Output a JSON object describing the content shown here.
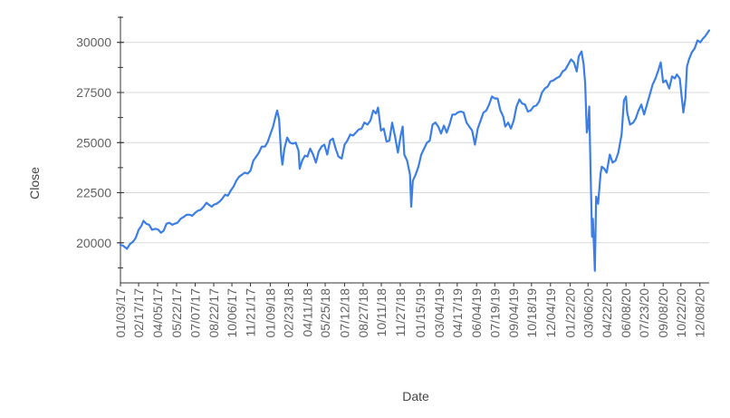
{
  "chart_data": {
    "type": "line",
    "xlabel": "Date",
    "ylabel": "Close",
    "ylim": [
      18000,
      31300
    ],
    "xlim": [
      "2017-01-03",
      "2020-12-31"
    ],
    "grid": true,
    "line_color": "#3b7ee6",
    "y_ticks": [
      {
        "value": 20000,
        "label": "20000"
      },
      {
        "value": 22500,
        "label": "22500"
      },
      {
        "value": 25000,
        "label": "25000"
      },
      {
        "value": 27500,
        "label": "27500"
      },
      {
        "value": 30000,
        "label": "30000"
      }
    ],
    "x_ticks": [
      {
        "date": "2017-01-03",
        "label": "01/03/17"
      },
      {
        "date": "2017-02-17",
        "label": "02/17/17"
      },
      {
        "date": "2017-04-05",
        "label": "04/05/17"
      },
      {
        "date": "2017-05-22",
        "label": "05/22/17"
      },
      {
        "date": "2017-07-07",
        "label": "07/07/17"
      },
      {
        "date": "2017-08-22",
        "label": "08/22/17"
      },
      {
        "date": "2017-10-06",
        "label": "10/06/17"
      },
      {
        "date": "2017-11-21",
        "label": "11/21/17"
      },
      {
        "date": "2018-01-09",
        "label": "01/09/18"
      },
      {
        "date": "2018-02-23",
        "label": "02/23/18"
      },
      {
        "date": "2018-04-11",
        "label": "04/11/18"
      },
      {
        "date": "2018-05-25",
        "label": "05/25/18"
      },
      {
        "date": "2018-07-12",
        "label": "07/12/18"
      },
      {
        "date": "2018-08-27",
        "label": "08/27/18"
      },
      {
        "date": "2018-10-11",
        "label": "10/11/18"
      },
      {
        "date": "2018-11-27",
        "label": "11/27/18"
      },
      {
        "date": "2019-01-15",
        "label": "01/15/19"
      },
      {
        "date": "2019-03-04",
        "label": "03/04/19"
      },
      {
        "date": "2019-04-17",
        "label": "04/17/19"
      },
      {
        "date": "2019-06-04",
        "label": "06/04/19"
      },
      {
        "date": "2019-07-19",
        "label": "07/19/19"
      },
      {
        "date": "2019-09-04",
        "label": "09/04/19"
      },
      {
        "date": "2019-10-18",
        "label": "10/18/19"
      },
      {
        "date": "2019-12-04",
        "label": "12/04/19"
      },
      {
        "date": "2020-01-22",
        "label": "01/22/20"
      },
      {
        "date": "2020-03-06",
        "label": "03/06/20"
      },
      {
        "date": "2020-04-22",
        "label": "04/22/20"
      },
      {
        "date": "2020-06-08",
        "label": "06/08/20"
      },
      {
        "date": "2020-07-23",
        "label": "07/23/20"
      },
      {
        "date": "2020-09-08",
        "label": "09/08/20"
      },
      {
        "date": "2020-10-22",
        "label": "10/22/20"
      },
      {
        "date": "2020-12-08",
        "label": "12/08/20"
      }
    ],
    "series": [
      {
        "x": [
          "2017-01-03",
          "2017-01-10",
          "2017-01-19",
          "2017-01-27",
          "2017-02-03",
          "2017-02-10",
          "2017-02-17",
          "2017-02-24",
          "2017-03-01",
          "2017-03-08",
          "2017-03-15",
          "2017-03-22",
          "2017-03-31",
          "2017-04-07",
          "2017-04-13",
          "2017-04-20",
          "2017-04-27",
          "2017-05-04",
          "2017-05-11",
          "2017-05-17",
          "2017-05-24",
          "2017-06-01",
          "2017-06-09",
          "2017-06-16",
          "2017-06-23",
          "2017-06-30",
          "2017-07-07",
          "2017-07-14",
          "2017-07-21",
          "2017-07-28",
          "2017-08-04",
          "2017-08-10",
          "2017-08-17",
          "2017-08-22",
          "2017-08-29",
          "2017-09-05",
          "2017-09-12",
          "2017-09-19",
          "2017-09-26",
          "2017-10-03",
          "2017-10-10",
          "2017-10-17",
          "2017-10-24",
          "2017-10-31",
          "2017-11-07",
          "2017-11-14",
          "2017-11-21",
          "2017-11-28",
          "2017-12-05",
          "2017-12-12",
          "2017-12-19",
          "2017-12-27",
          "2018-01-03",
          "2018-01-09",
          "2018-01-16",
          "2018-01-22",
          "2018-01-26",
          "2018-01-31",
          "2018-02-05",
          "2018-02-08",
          "2018-02-13",
          "2018-02-20",
          "2018-02-27",
          "2018-03-06",
          "2018-03-13",
          "2018-03-20",
          "2018-03-23",
          "2018-03-29",
          "2018-04-05",
          "2018-04-11",
          "2018-04-18",
          "2018-04-25",
          "2018-05-02",
          "2018-05-09",
          "2018-05-16",
          "2018-05-23",
          "2018-05-30",
          "2018-06-06",
          "2018-06-13",
          "2018-06-20",
          "2018-06-27",
          "2018-07-05",
          "2018-07-12",
          "2018-07-19",
          "2018-07-26",
          "2018-08-02",
          "2018-08-09",
          "2018-08-16",
          "2018-08-23",
          "2018-08-30",
          "2018-09-07",
          "2018-09-14",
          "2018-09-21",
          "2018-09-28",
          "2018-10-03",
          "2018-10-10",
          "2018-10-17",
          "2018-10-24",
          "2018-10-31",
          "2018-11-07",
          "2018-11-14",
          "2018-11-21",
          "2018-11-28",
          "2018-12-03",
          "2018-12-07",
          "2018-12-14",
          "2018-12-21",
          "2018-12-24",
          "2018-12-28",
          "2019-01-04",
          "2019-01-11",
          "2019-01-18",
          "2019-01-25",
          "2019-02-01",
          "2019-02-08",
          "2019-02-15",
          "2019-02-22",
          "2019-03-01",
          "2019-03-08",
          "2019-03-15",
          "2019-03-22",
          "2019-03-29",
          "2019-04-05",
          "2019-04-12",
          "2019-04-18",
          "2019-04-26",
          "2019-05-03",
          "2019-05-10",
          "2019-05-17",
          "2019-05-24",
          "2019-05-31",
          "2019-06-07",
          "2019-06-14",
          "2019-06-21",
          "2019-06-28",
          "2019-07-05",
          "2019-07-12",
          "2019-07-19",
          "2019-07-26",
          "2019-08-02",
          "2019-08-09",
          "2019-08-14",
          "2019-08-21",
          "2019-08-28",
          "2019-09-04",
          "2019-09-11",
          "2019-09-18",
          "2019-09-25",
          "2019-10-02",
          "2019-10-09",
          "2019-10-16",
          "2019-10-23",
          "2019-10-30",
          "2019-11-06",
          "2019-11-13",
          "2019-11-20",
          "2019-11-27",
          "2019-12-04",
          "2019-12-11",
          "2019-12-18",
          "2019-12-27",
          "2020-01-03",
          "2020-01-10",
          "2020-01-17",
          "2020-01-24",
          "2020-01-31",
          "2020-02-07",
          "2020-02-12",
          "2020-02-19",
          "2020-02-24",
          "2020-02-28",
          "2020-03-03",
          "2020-03-06",
          "2020-03-09",
          "2020-03-12",
          "2020-03-16",
          "2020-03-18",
          "2020-03-23",
          "2020-03-26",
          "2020-03-31",
          "2020-04-06",
          "2020-04-09",
          "2020-04-15",
          "2020-04-21",
          "2020-04-29",
          "2020-05-06",
          "2020-05-13",
          "2020-05-20",
          "2020-05-28",
          "2020-06-03",
          "2020-06-08",
          "2020-06-11",
          "2020-06-18",
          "2020-06-26",
          "2020-07-02",
          "2020-07-09",
          "2020-07-16",
          "2020-07-23",
          "2020-07-30",
          "2020-08-06",
          "2020-08-13",
          "2020-08-20",
          "2020-08-27",
          "2020-09-02",
          "2020-09-08",
          "2020-09-15",
          "2020-09-23",
          "2020-09-30",
          "2020-10-07",
          "2020-10-12",
          "2020-10-19",
          "2020-10-28",
          "2020-11-02",
          "2020-11-06",
          "2020-11-11",
          "2020-11-18",
          "2020-11-25",
          "2020-12-02",
          "2020-12-09",
          "2020-12-16",
          "2020-12-21",
          "2020-12-31"
        ],
        "y": [
          19900,
          19850,
          19700,
          19950,
          20050,
          20250,
          20650,
          20850,
          21100,
          20950,
          20900,
          20650,
          20700,
          20650,
          20500,
          20600,
          20950,
          21000,
          20900,
          20950,
          21000,
          21200,
          21300,
          21400,
          21400,
          21350,
          21500,
          21600,
          21650,
          21800,
          22000,
          21900,
          21800,
          21900,
          21950,
          22050,
          22200,
          22400,
          22350,
          22600,
          22800,
          23100,
          23300,
          23400,
          23500,
          23450,
          23600,
          24100,
          24300,
          24500,
          24800,
          24800,
          25050,
          25400,
          25800,
          26300,
          26600,
          26150,
          24400,
          23900,
          24700,
          25250,
          25000,
          24950,
          25000,
          24600,
          23700,
          24100,
          24350,
          24300,
          24700,
          24400,
          24000,
          24550,
          24800,
          24900,
          24400,
          25100,
          25200,
          24700,
          24300,
          24200,
          24900,
          25100,
          25400,
          25350,
          25500,
          25650,
          25700,
          26000,
          25900,
          26100,
          26600,
          26450,
          26750,
          25600,
          25700,
          25050,
          25100,
          26000,
          25300,
          24500,
          25350,
          25800,
          24400,
          24100,
          23400,
          21800,
          23100,
          23400,
          23800,
          24400,
          24700,
          25000,
          25100,
          25900,
          26000,
          25800,
          25450,
          25850,
          25500,
          25900,
          26400,
          26400,
          26500,
          26550,
          26500,
          26000,
          25800,
          25600,
          24900,
          25700,
          26100,
          26500,
          26600,
          26900,
          27300,
          27200,
          27200,
          26600,
          26300,
          25800,
          26000,
          25700,
          26100,
          26800,
          27150,
          26950,
          26900,
          26550,
          26600,
          26800,
          26850,
          27050,
          27500,
          27700,
          27800,
          28050,
          28100,
          28200,
          28300,
          28550,
          28650,
          28900,
          29150,
          29000,
          28550,
          29300,
          29550,
          28900,
          27950,
          25500,
          25800,
          26800,
          23900,
          20300,
          21200,
          18600,
          22300,
          21950,
          23450,
          23800,
          23700,
          23500,
          24400,
          24000,
          24100,
          24500,
          25400,
          27100,
          27300,
          26500,
          25900,
          26000,
          26200,
          26600,
          26900,
          26400,
          26900,
          27400,
          27900,
          28200,
          28600,
          29000,
          28000,
          28100,
          27700,
          28300,
          28200,
          28400,
          28200,
          26500,
          27200,
          28800,
          29150,
          29500,
          29700,
          30100,
          30000,
          30200,
          30300,
          30600
        ]
      }
    ]
  }
}
